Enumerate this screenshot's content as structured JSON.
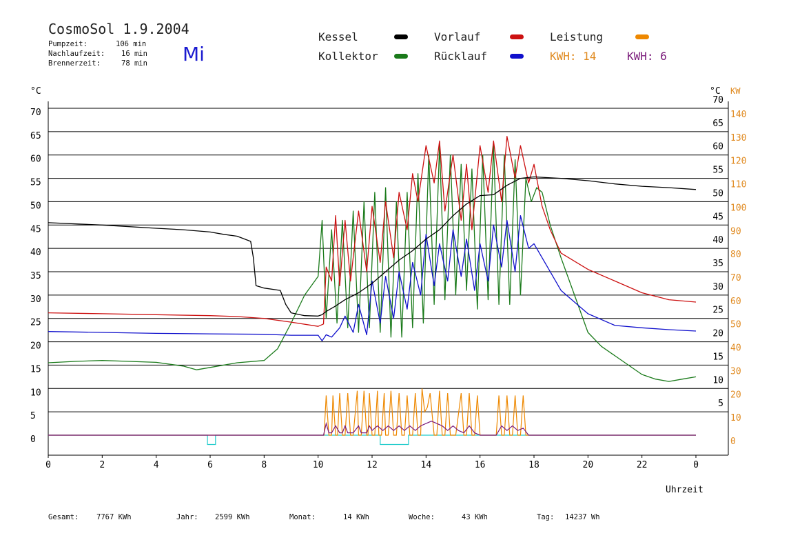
{
  "header": {
    "title": "CosmoSol 1.9.2004",
    "weekday": "Mi",
    "stats": [
      {
        "label": "Pumpzeit:",
        "value": "106 min"
      },
      {
        "label": "Nachlaufzeit:",
        "value": "16 min"
      },
      {
        "label": "Brennerzeit:",
        "value": "78 min"
      }
    ]
  },
  "legend": {
    "kessel": "Kessel",
    "kollektor": "Kollektor",
    "vorlauf": "Vorlauf",
    "ruecklauf": "Rücklauf",
    "leistung": "Leistung",
    "kwh_orange": "KWH: 14",
    "kwh_purple": "KWH: 6"
  },
  "colors": {
    "kessel": "#000000",
    "kollektor": "#1a7a1a",
    "vorlauf": "#cc1111",
    "ruecklauf": "#1010cc",
    "leistung": "#ee8800",
    "leistung2": "#7a1a7a",
    "pump": "#22cccc"
  },
  "axes": {
    "left_unit": "°C",
    "right_unit_c": "°C",
    "right_unit_kw": "KW",
    "x_label": "Uhrzeit"
  },
  "footer": [
    {
      "label": "Gesamt:",
      "value": "7767 KWh"
    },
    {
      "label": "Jahr:",
      "value": "2599 KWh"
    },
    {
      "label": "Monat:",
      "value": "14 KWh"
    },
    {
      "label": "Woche:",
      "value": "43 KWh"
    },
    {
      "label": "Tag:",
      "value": "14237 Wh"
    }
  ],
  "chart_data": {
    "type": "line",
    "xlabel": "Uhrzeit",
    "ylabel": "°C",
    "xlim": [
      0,
      24
    ],
    "ylim": [
      0,
      70
    ],
    "y2lim_kw": [
      0,
      140
    ],
    "grid": true,
    "x_ticks": [
      "0",
      "2",
      "4",
      "6",
      "8",
      "10",
      "12",
      "14",
      "16",
      "18",
      "20",
      "22",
      "0"
    ],
    "y_ticks_left": [
      "0",
      "5",
      "10",
      "15",
      "20",
      "25",
      "30",
      "35",
      "40",
      "45",
      "50",
      "55",
      "60",
      "65",
      "70"
    ],
    "y_ticks_right_c": [
      "",
      "5",
      "10",
      "15",
      "20",
      "25",
      "30",
      "35",
      "40",
      "45",
      "50",
      "55",
      "60",
      "65",
      "70"
    ],
    "y_ticks_right_kw": [
      "0",
      "10",
      "20",
      "30",
      "40",
      "50",
      "60",
      "70",
      "80",
      "90",
      "100",
      "110",
      "120",
      "130",
      "140"
    ],
    "series": [
      {
        "name": "Kessel",
        "color": "#000000",
        "x": [
          0,
          2,
          4,
          5,
          6,
          6.5,
          7,
          7.5,
          7.6,
          7.7,
          8,
          8.6,
          8.8,
          9,
          9.5,
          10,
          10.15,
          10.3,
          10.6,
          11,
          11.5,
          12,
          12.5,
          13,
          13.5,
          14,
          14.5,
          15,
          15.5,
          16,
          16.5,
          17,
          17.5,
          18,
          19,
          20,
          21,
          22,
          23,
          24
        ],
        "y": [
          45.5,
          45,
          44.3,
          44,
          43.5,
          43,
          42.6,
          41.5,
          38,
          32,
          31.5,
          31,
          28,
          26.2,
          25.6,
          25.5,
          25.8,
          26.5,
          27.5,
          29,
          30.5,
          32.5,
          35,
          37.5,
          39.5,
          42,
          44,
          47,
          49.5,
          51.3,
          51.5,
          53.5,
          55,
          55.3,
          55,
          54.5,
          53.8,
          53.3,
          53,
          52.6
        ]
      },
      {
        "name": "Vorlauf",
        "color": "#cc1111",
        "x": [
          0,
          2,
          4,
          6,
          7,
          8,
          9,
          10,
          10.2,
          10.3,
          10.5,
          10.65,
          10.8,
          11,
          11.2,
          11.5,
          11.8,
          12,
          12.3,
          12.5,
          12.8,
          13,
          13.3,
          13.5,
          13.7,
          14,
          14.3,
          14.5,
          14.7,
          15,
          15.3,
          15.5,
          15.7,
          16,
          16.3,
          16.5,
          16.8,
          17,
          17.3,
          17.5,
          17.8,
          18,
          18.3,
          18.6,
          19,
          20,
          21,
          22,
          23,
          24
        ],
        "y": [
          26.2,
          26,
          25.8,
          25.6,
          25.4,
          25,
          24.2,
          23.3,
          23.8,
          36,
          33,
          47,
          32,
          46,
          33,
          48,
          35,
          49,
          37,
          50,
          38,
          52,
          44,
          56,
          50,
          62,
          54,
          63,
          48,
          60,
          46,
          58,
          44,
          62,
          52,
          63,
          50,
          64,
          55,
          62,
          54,
          58,
          49,
          44,
          39,
          35.5,
          33,
          30.5,
          29,
          28.5
        ]
      },
      {
        "name": "Rücklauf",
        "color": "#1010cc",
        "x": [
          0,
          2,
          4,
          6,
          8,
          9,
          10,
          10.15,
          10.3,
          10.5,
          10.8,
          11,
          11.3,
          11.5,
          11.8,
          12,
          12.3,
          12.5,
          12.8,
          13,
          13.3,
          13.5,
          13.8,
          14,
          14.3,
          14.5,
          14.8,
          15,
          15.3,
          15.5,
          15.8,
          16,
          16.3,
          16.5,
          16.8,
          17,
          17.3,
          17.5,
          17.8,
          18,
          18.5,
          19,
          20,
          21,
          22,
          23,
          24
        ],
        "y": [
          22.2,
          22,
          21.8,
          21.7,
          21.6,
          21.4,
          21.4,
          20.2,
          21.5,
          21,
          23,
          25.5,
          22,
          28,
          21.5,
          33,
          24,
          34,
          25,
          35,
          27,
          37,
          30,
          43,
          32,
          41,
          33,
          44,
          34,
          42,
          31,
          41,
          33,
          45,
          36,
          46,
          35,
          47,
          40,
          41,
          36,
          31,
          26,
          23.5,
          23,
          22.6,
          22.3
        ]
      },
      {
        "name": "Kollektor",
        "color": "#1a7a1a",
        "x": [
          0,
          1,
          2,
          3,
          4,
          5,
          5.5,
          6,
          7,
          8,
          8.5,
          9,
          9.5,
          10,
          10.15,
          10.3,
          10.5,
          10.7,
          10.9,
          11.1,
          11.3,
          11.5,
          11.7,
          11.9,
          12.1,
          12.3,
          12.5,
          12.7,
          12.9,
          13.1,
          13.3,
          13.5,
          13.7,
          13.9,
          14.1,
          14.3,
          14.5,
          14.7,
          14.9,
          15.1,
          15.3,
          15.5,
          15.7,
          15.9,
          16.1,
          16.3,
          16.5,
          16.7,
          16.9,
          17.1,
          17.3,
          17.5,
          17.7,
          17.9,
          18.1,
          18.3,
          18.6,
          19,
          19.5,
          20,
          20.5,
          21,
          22,
          22.5,
          23,
          23.5,
          24
        ],
        "y": [
          15.5,
          15.8,
          16,
          15.8,
          15.6,
          14.8,
          14,
          14.5,
          15.5,
          16,
          18.5,
          24,
          30,
          34,
          46,
          25,
          44,
          24,
          46,
          23,
          48,
          22,
          50,
          23,
          52,
          22,
          53,
          21,
          50,
          21,
          52,
          23,
          56,
          24,
          60,
          28,
          62,
          29,
          60,
          30,
          58,
          31,
          57,
          27,
          60,
          29,
          62,
          28,
          60,
          28,
          59,
          30,
          55,
          50,
          53,
          52,
          45,
          38,
          30,
          22,
          19,
          17,
          13,
          12,
          11.5,
          12,
          12.5
        ]
      }
    ],
    "power_series": [
      {
        "name": "Leistung",
        "color": "#ee8800",
        "x": [
          0,
          10.2,
          10.22,
          10.3,
          10.4,
          10.5,
          10.55,
          10.65,
          10.72,
          10.8,
          10.9,
          11.0,
          11.1,
          11.2,
          11.3,
          11.45,
          11.5,
          11.6,
          11.7,
          11.8,
          11.85,
          11.9,
          12.0,
          12.1,
          12.2,
          12.25,
          12.35,
          12.45,
          12.5,
          12.6,
          12.7,
          12.8,
          12.9,
          13.0,
          13.1,
          13.2,
          13.3,
          13.4,
          13.5,
          13.6,
          13.7,
          13.8,
          13.85,
          13.95,
          14.05,
          14.15,
          14.3,
          14.4,
          14.5,
          14.6,
          14.7,
          14.8,
          14.9,
          15.1,
          15.3,
          15.4,
          15.5,
          15.6,
          15.7,
          15.8,
          15.9,
          16.0,
          16.5,
          16.6,
          16.7,
          16.8,
          16.9,
          17.0,
          17.1,
          17.2,
          17.3,
          17.4,
          17.5,
          17.6,
          17.7,
          24
        ],
        "y": [
          0,
          0,
          0,
          17,
          0,
          0,
          17,
          0,
          0,
          18,
          0,
          0,
          18,
          0,
          0,
          19,
          0,
          0,
          19,
          0,
          0,
          18,
          0,
          0,
          19,
          0,
          0,
          18,
          0,
          0,
          19,
          0,
          0,
          18,
          0,
          0,
          17,
          0,
          0,
          18,
          0,
          0,
          20,
          10,
          12,
          18,
          0,
          0,
          19,
          0,
          0,
          18,
          0,
          0,
          18,
          0,
          0,
          18,
          0,
          0,
          17,
          0,
          0,
          0,
          17,
          0,
          0,
          17,
          0,
          0,
          17,
          0,
          0,
          17,
          0,
          0
        ]
      },
      {
        "name": "Leistung (violett)",
        "color": "#7a1a7a",
        "x": [
          0,
          10.2,
          10.3,
          10.4,
          10.5,
          10.65,
          10.8,
          10.9,
          11.0,
          11.1,
          11.3,
          11.5,
          11.6,
          11.8,
          11.9,
          12.0,
          12.2,
          12.4,
          12.6,
          12.8,
          13.0,
          13.2,
          13.4,
          13.6,
          13.8,
          14.0,
          14.2,
          14.4,
          14.6,
          14.8,
          15.0,
          15.2,
          15.4,
          15.6,
          15.8,
          16.0,
          16.6,
          16.8,
          17.0,
          17.2,
          17.4,
          17.6,
          17.8,
          24
        ],
        "y": [
          0,
          0,
          5,
          1,
          1,
          4,
          1,
          1,
          4,
          1,
          1,
          4,
          1,
          1,
          4,
          2,
          4,
          2,
          4,
          2,
          4,
          2,
          4,
          2,
          4,
          5,
          6,
          5,
          4,
          2,
          4,
          2,
          1,
          4,
          1,
          0,
          0,
          4,
          2,
          4,
          2,
          3,
          0,
          0
        ]
      },
      {
        "name": "Pumpe",
        "color": "#22cccc",
        "x": [
          0,
          5.9,
          5.9,
          6.2,
          6.2,
          12.3,
          12.3,
          13.35,
          13.35,
          24
        ],
        "y": [
          0,
          0,
          -4,
          -4,
          0,
          0,
          -4,
          -4,
          0,
          0
        ]
      }
    ]
  }
}
